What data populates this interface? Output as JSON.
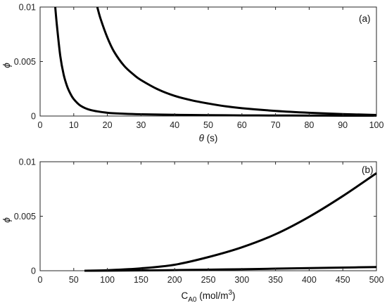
{
  "chart_data": [
    {
      "type": "line",
      "panel_label": "(a)",
      "xlabel_symbol": "θ",
      "xlabel_unit": " (s)",
      "ylabel": "ϕ",
      "xlim": [
        0,
        100
      ],
      "ylim": [
        0,
        0.01
      ],
      "xticks": [
        0,
        10,
        20,
        30,
        40,
        50,
        60,
        70,
        80,
        90,
        100
      ],
      "xtick_labels": [
        "0",
        "10",
        "20",
        "30",
        "40",
        "50",
        "60",
        "70",
        "80",
        "90",
        "100"
      ],
      "yticks": [
        0,
        0.005,
        0.01
      ],
      "ytick_labels": [
        "0",
        "0.005",
        "0.01"
      ],
      "grid": false,
      "line_color": "#000000",
      "series": [
        {
          "x": [
            4.5,
            5,
            6,
            7,
            8,
            9,
            10,
            12,
            15,
            20,
            25,
            30,
            40,
            50,
            60,
            70,
            80,
            90,
            100
          ],
          "values": [
            0.01,
            0.0083,
            0.0055,
            0.0038,
            0.00275,
            0.00205,
            0.00155,
            0.00095,
            0.00055,
            0.0003,
            0.00021,
            0.00016,
            0.00011,
            8e-05,
            6e-05,
            5e-05,
            4e-05,
            3.5e-05,
            3e-05
          ]
        },
        {
          "x": [
            17,
            18,
            20,
            22,
            25,
            28,
            30,
            35,
            40,
            45,
            50,
            55,
            60,
            70,
            80,
            90,
            100
          ],
          "values": [
            0.01,
            0.0089,
            0.0072,
            0.0059,
            0.0046,
            0.00375,
            0.0033,
            0.00245,
            0.00185,
            0.00145,
            0.00115,
            0.0009,
            0.00072,
            0.00047,
            0.0003,
            0.00018,
            0.0001
          ]
        }
      ]
    },
    {
      "type": "line",
      "panel_label": "(b)",
      "xlabel_main": "C",
      "xlabel_sub": "A0",
      "xlabel_unit": " (mol/m",
      "xlabel_sup": "3",
      "xlabel_close": ")",
      "ylabel": "ϕ",
      "xlim": [
        0,
        500
      ],
      "ylim": [
        0,
        0.01
      ],
      "xticks": [
        0,
        50,
        100,
        150,
        200,
        250,
        300,
        350,
        400,
        450,
        500
      ],
      "xtick_labels": [
        "0",
        "50",
        "100",
        "150",
        "200",
        "250",
        "300",
        "350",
        "400",
        "450",
        "500"
      ],
      "yticks": [
        0,
        0.005,
        0.01
      ],
      "ytick_labels": [
        "0",
        "0.005",
        "0.01"
      ],
      "grid": false,
      "line_color": "#000000",
      "series": [
        {
          "x": [
            66,
            100,
            150,
            200,
            250,
            300,
            350,
            400,
            450,
            500
          ],
          "values": [
            0.0,
            5e-05,
            0.00022,
            0.00055,
            0.00125,
            0.00215,
            0.00335,
            0.00495,
            0.00685,
            0.00895
          ]
        },
        {
          "x": [
            66,
            100,
            150,
            200,
            250,
            300,
            350,
            400,
            450,
            500
          ],
          "values": [
            0.0,
            1e-05,
            3e-05,
            6e-05,
            0.0001,
            0.00014,
            0.00019,
            0.00024,
            0.00029,
            0.00034
          ]
        }
      ]
    }
  ]
}
